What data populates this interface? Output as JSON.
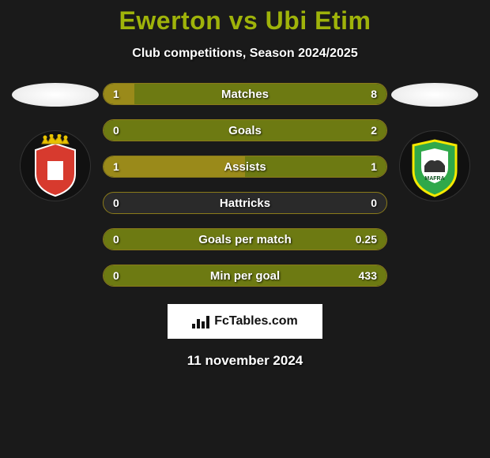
{
  "title_color": "#9fb30a",
  "title": {
    "player1": "Ewerton",
    "vs": "vs",
    "player2": "Ubi Etim"
  },
  "subtitle": "Club competitions, Season 2024/2025",
  "colors": {
    "left": "#9a8a1a",
    "right": "#6d7a12",
    "track": "#2a2a2a",
    "border": "#8a7a1a"
  },
  "bars": [
    {
      "label": "Matches",
      "left": "1",
      "right": "8",
      "left_pct": 11,
      "right_pct": 89,
      "mode": "split"
    },
    {
      "label": "Goals",
      "left": "0",
      "right": "2",
      "left_pct": 0,
      "right_pct": 100,
      "mode": "right"
    },
    {
      "label": "Assists",
      "left": "1",
      "right": "1",
      "left_pct": 50,
      "right_pct": 50,
      "mode": "split"
    },
    {
      "label": "Hattricks",
      "left": "0",
      "right": "0",
      "left_pct": 0,
      "right_pct": 0,
      "mode": "empty"
    },
    {
      "label": "Goals per match",
      "left": "0",
      "right": "0.25",
      "left_pct": 0,
      "right_pct": 100,
      "mode": "right"
    },
    {
      "label": "Min per goal",
      "left": "0",
      "right": "433",
      "left_pct": 0,
      "right_pct": 100,
      "mode": "right"
    }
  ],
  "brand": "FcTables.com",
  "date": "11 november 2024",
  "club_left": {
    "name": "FC Penafiel",
    "shield_main": "#d73a2e",
    "shield_trim": "#ffffff",
    "crown": "#e8c300"
  },
  "club_right": {
    "name": "CD Mafra",
    "shield_main": "#2fa84a",
    "shield_trim": "#f4e800",
    "inner": "#ffffff"
  }
}
